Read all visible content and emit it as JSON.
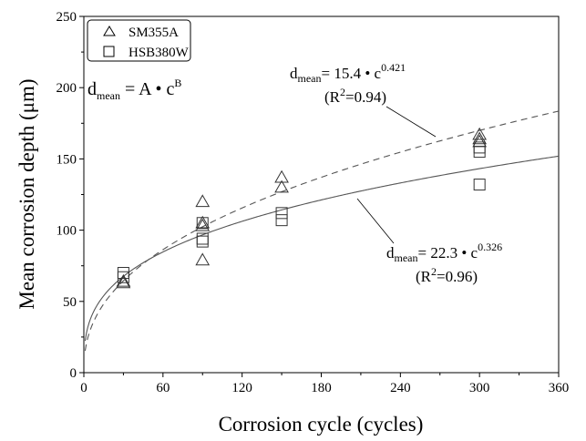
{
  "chart_data": {
    "type": "scatter",
    "xlabel": "Corrosion cycle (cycles)",
    "ylabel": "Mean corrosion depth (μm)",
    "xlim": [
      0,
      360
    ],
    "ylim": [
      0,
      250
    ],
    "xticks": [
      "0",
      "60",
      "120",
      "180",
      "240",
      "300",
      "360"
    ],
    "yticks": [
      "0",
      "50",
      "100",
      "150",
      "200",
      "250"
    ],
    "grid": false,
    "legend_position": "top-left",
    "series": [
      {
        "name": "SM355A",
        "marker": "triangle",
        "x": [
          30,
          30,
          90,
          90,
          90,
          90,
          150,
          150,
          300,
          300,
          300
        ],
        "y": [
          64,
          63,
          120,
          105,
          103,
          79,
          137,
          130,
          167,
          164,
          162
        ]
      },
      {
        "name": "HSB380W",
        "marker": "square",
        "x": [
          30,
          30,
          90,
          90,
          90,
          150,
          150,
          300,
          300,
          300
        ],
        "y": [
          70,
          67,
          105,
          94,
          92,
          112,
          107,
          158,
          155,
          132
        ]
      }
    ],
    "fits": [
      {
        "series": "SM355A",
        "style": "dashed",
        "A": 15.4,
        "B": 0.421,
        "label_lhs": "d",
        "label_sub": "mean",
        "label_mid": "= 15.4 • c",
        "label_exp": "0.421",
        "r2_open": "(R",
        "r2_exp": "2",
        "r2_close": "=0.94)"
      },
      {
        "series": "HSB380W",
        "style": "solid",
        "A": 22.3,
        "B": 0.326,
        "label_lhs": "d",
        "label_sub": "mean",
        "label_mid": "= 22.3 • c",
        "label_exp": "0.326",
        "r2_open": "(R",
        "r2_exp": "2",
        "r2_close": "=0.96)"
      }
    ],
    "general_equation": {
      "lhs": "d",
      "sub": "mean",
      "rhs": " = A • c",
      "exp": "B"
    }
  }
}
